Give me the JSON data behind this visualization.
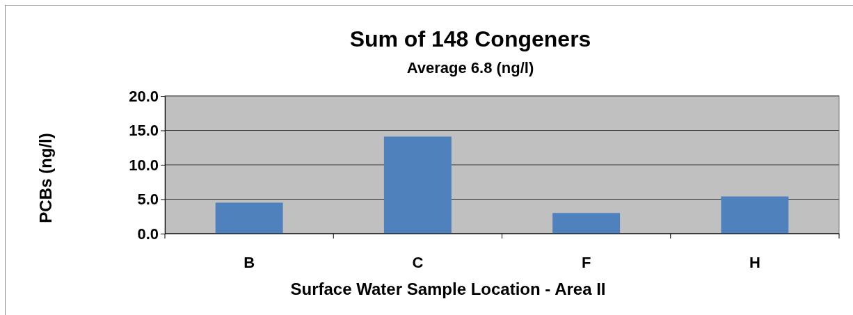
{
  "chart_data": {
    "type": "bar",
    "title": "Sum of 148 Congeners",
    "subtitle": "Average 6.8 (ng/l)",
    "xlabel": "Surface Water Sample Location - Area II",
    "ylabel": "PCBs (ng/l)",
    "categories": [
      "B",
      "C",
      "F",
      "H"
    ],
    "values": [
      4.5,
      14.1,
      3.0,
      5.4
    ],
    "color": "#4f81bd",
    "ylim": [
      0,
      20
    ],
    "yticks": [
      {
        "value": 0,
        "label": "0.0"
      },
      {
        "value": 5,
        "label": "5.0"
      },
      {
        "value": 10,
        "label": "10.0"
      },
      {
        "value": 15,
        "label": "15.0"
      },
      {
        "value": 20,
        "label": "20.0"
      }
    ],
    "grid": "y"
  }
}
